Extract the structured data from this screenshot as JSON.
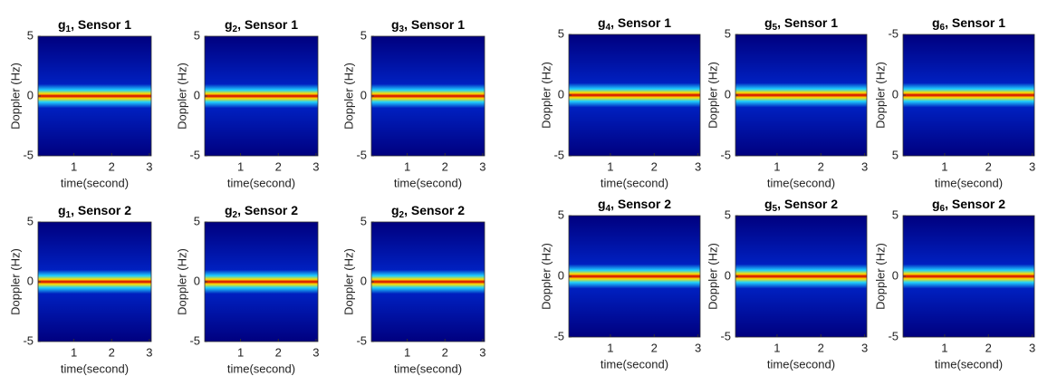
{
  "chart_data": [
    {
      "type": "heatmap",
      "title": {
        "base": "g",
        "sub": "1",
        "rest": ", Sensor 1"
      },
      "xlabel": "time(second)",
      "ylabel": "Doppler (Hz)",
      "xlim": [
        0.05,
        3.05
      ],
      "ylim": [
        -5,
        5
      ],
      "xticks": [
        1,
        2,
        3
      ],
      "yticks": [
        -5,
        0,
        5
      ]
    },
    {
      "type": "heatmap",
      "title": {
        "base": "g",
        "sub": "2",
        "rest": ", Sensor 1"
      },
      "xlabel": "time(second)",
      "ylabel": "Doppler (Hz)",
      "xlim": [
        0.05,
        3.05
      ],
      "ylim": [
        -5,
        5
      ],
      "xticks": [
        1,
        2,
        3
      ],
      "yticks": [
        -5,
        0,
        5
      ]
    },
    {
      "type": "heatmap",
      "title": {
        "base": "g",
        "sub": "3",
        "rest": ", Sensor 1"
      },
      "xlabel": "time(second)",
      "ylabel": "Doppler (Hz)",
      "xlim": [
        0.05,
        3.05
      ],
      "ylim": [
        -5,
        5
      ],
      "xticks": [
        1,
        2,
        3
      ],
      "yticks": [
        -5,
        0,
        5
      ]
    },
    {
      "type": "heatmap",
      "title": {
        "base": "g",
        "sub": "4",
        "rest": ", Sensor 1"
      },
      "xlabel": "time(second)",
      "ylabel": "Doppler (Hz)",
      "xlim": [
        0.05,
        3.05
      ],
      "ylim": [
        -5,
        5
      ],
      "xticks": [
        1,
        2,
        3
      ],
      "yticks": [
        -5,
        0,
        5
      ]
    },
    {
      "type": "heatmap",
      "title": {
        "base": "g",
        "sub": "5",
        "rest": ", Sensor 1"
      },
      "xlabel": "time(second)",
      "ylabel": "Doppler (Hz)",
      "xlim": [
        0.05,
        3.05
      ],
      "ylim": [
        -5,
        5
      ],
      "xticks": [
        1,
        2,
        3
      ],
      "yticks": [
        -5,
        0,
        5
      ]
    },
    {
      "type": "heatmap",
      "title": {
        "base": "g",
        "sub": "6",
        "rest": ", Sensor 1"
      },
      "xlabel": "time(second)",
      "ylabel": "Doppler (Hz)",
      "xlim": [
        0.05,
        3.05
      ],
      "ylim": [
        5,
        -5
      ],
      "xticks": [
        1,
        2,
        3
      ],
      "yticks": [
        -5,
        0,
        5
      ]
    },
    {
      "type": "heatmap",
      "title": {
        "base": "g",
        "sub": "1",
        "rest": ", Sensor 2"
      },
      "xlabel": "time(second)",
      "ylabel": "Doppler (Hz)",
      "xlim": [
        0.05,
        3.05
      ],
      "ylim": [
        -5,
        5
      ],
      "xticks": [
        1,
        2,
        3
      ],
      "yticks": [
        -5,
        0,
        5
      ]
    },
    {
      "type": "heatmap",
      "title": {
        "base": "g",
        "sub": "2",
        "rest": ", Sensor 2"
      },
      "xlabel": "time(second)",
      "ylabel": "Doppler (Hz)",
      "xlim": [
        0.05,
        3.05
      ],
      "ylim": [
        -5,
        5
      ],
      "xticks": [
        1,
        2,
        3
      ],
      "yticks": [
        -5,
        0,
        5
      ]
    },
    {
      "type": "heatmap",
      "title": {
        "base": "g",
        "sub": "2",
        "rest": ", Sensor 2"
      },
      "xlabel": "time(second)",
      "ylabel": "Doppler (Hz)",
      "xlim": [
        0.05,
        3.05
      ],
      "ylim": [
        -5,
        5
      ],
      "xticks": [
        1,
        2,
        3
      ],
      "yticks": [
        -5,
        0,
        5
      ]
    },
    {
      "type": "heatmap",
      "title": {
        "base": "g",
        "sub": "4",
        "rest": ", Sensor 2"
      },
      "xlabel": "time(second)",
      "ylabel": "Doppler (Hz)",
      "xlim": [
        0.05,
        3.05
      ],
      "ylim": [
        -5,
        5
      ],
      "xticks": [
        1,
        2,
        3
      ],
      "yticks": [
        -5,
        0,
        5
      ]
    },
    {
      "type": "heatmap",
      "title": {
        "base": "g",
        "sub": "5",
        "rest": ", Sensor 2"
      },
      "xlabel": "time(second)",
      "ylabel": "Doppler (Hz)",
      "xlim": [
        0.05,
        3.05
      ],
      "ylim": [
        -5,
        5
      ],
      "xticks": [
        1,
        2,
        3
      ],
      "yticks": [
        -5,
        0,
        5
      ]
    },
    {
      "type": "heatmap",
      "title": {
        "base": "g",
        "sub": "6",
        "rest": ", Sensor 2"
      },
      "xlabel": "time(second)",
      "ylabel": "Doppler (Hz)",
      "xlim": [
        0.05,
        3.05
      ],
      "ylim": [
        -5,
        5
      ],
      "xticks": [
        1,
        2,
        3
      ],
      "yticks": [
        -5,
        0,
        5
      ]
    }
  ]
}
